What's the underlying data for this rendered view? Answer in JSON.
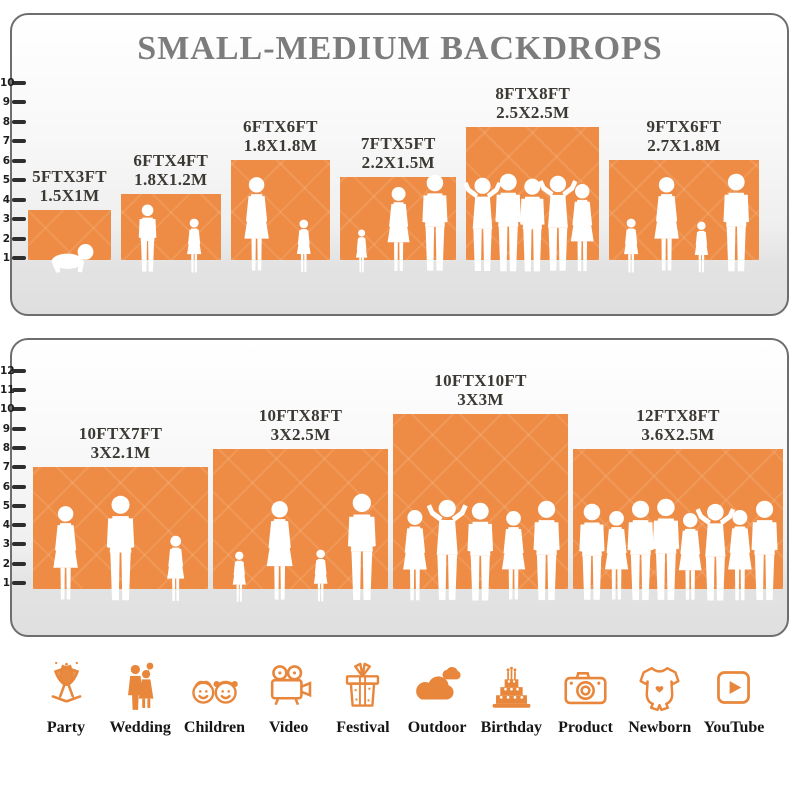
{
  "title": "SMALL-MEDIUM BACKDROPS",
  "colors": {
    "backdrop_orange": "#EE8C45",
    "icon_orange": "#E8873C",
    "title_gray": "#7C7C7C",
    "label_dark": "#3C3934"
  },
  "panels": [
    {
      "name": "top-row-small-medium",
      "ruler_min": 1,
      "ruler_max": 10,
      "backdrops": [
        {
          "size_ft": "5FTX3FT",
          "size_m": "1.5X1M",
          "w_ft": 5,
          "h_ft": 3,
          "people": [
            {
              "type": "baby",
              "h_ft": 1.9
            }
          ]
        },
        {
          "size_ft": "6FTX4FT",
          "size_m": "1.8X1.2M",
          "w_ft": 6,
          "h_ft": 4,
          "people": [
            {
              "type": "boy",
              "h_ft": 4.2
            },
            {
              "type": "girl",
              "h_ft": 3.4
            }
          ]
        },
        {
          "size_ft": "6FTX6FT",
          "size_m": "1.8X1.8M",
          "w_ft": 6,
          "h_ft": 6,
          "people": [
            {
              "type": "woman",
              "h_ft": 5.9
            },
            {
              "type": "girl",
              "h_ft": 3.3
            }
          ]
        },
        {
          "size_ft": "7FTX5FT",
          "size_m": "2.2X1.5M",
          "w_ft": 7,
          "h_ft": 5,
          "people": [
            {
              "type": "girl",
              "h_ft": 2.7
            },
            {
              "type": "woman",
              "h_ft": 5.3
            },
            {
              "type": "man",
              "h_ft": 6.0
            }
          ]
        },
        {
          "size_ft": "8FTX8FT",
          "size_m": "2.5X2.5M",
          "w_ft": 8,
          "h_ft": 8,
          "people": [
            {
              "type": "flex",
              "h_ft": 5.9
            },
            {
              "type": "man",
              "h_ft": 6.1
            },
            {
              "type": "man",
              "h_ft": 5.8
            },
            {
              "type": "flex",
              "h_ft": 6.0
            },
            {
              "type": "woman",
              "h_ft": 5.5
            }
          ]
        },
        {
          "size_ft": "9FTX6FT",
          "size_m": "2.7X1.8M",
          "w_ft": 9,
          "h_ft": 6,
          "people": [
            {
              "type": "girl",
              "h_ft": 3.4
            },
            {
              "type": "woman",
              "h_ft": 5.9
            },
            {
              "type": "girl",
              "h_ft": 3.2
            },
            {
              "type": "man",
              "h_ft": 6.1
            }
          ]
        }
      ]
    },
    {
      "name": "bottom-row-medium-large",
      "ruler_min": 1,
      "ruler_max": 12,
      "backdrops": [
        {
          "size_ft": "10FTX7FT",
          "size_m": "3X2.1M",
          "w_ft": 10,
          "h_ft": 7,
          "people": [
            {
              "type": "woman",
              "h_ft": 5.6
            },
            {
              "type": "man",
              "h_ft": 6.2
            },
            {
              "type": "girl",
              "h_ft": 3.9
            }
          ]
        },
        {
          "size_ft": "10FTX8FT",
          "size_m": "3X2.5M",
          "w_ft": 10,
          "h_ft": 8,
          "people": [
            {
              "type": "girl",
              "h_ft": 3.0
            },
            {
              "type": "woman",
              "h_ft": 5.9
            },
            {
              "type": "girl",
              "h_ft": 3.1
            },
            {
              "type": "man",
              "h_ft": 6.3
            }
          ]
        },
        {
          "size_ft": "10FTX10FT",
          "size_m": "3X3M",
          "w_ft": 10,
          "h_ft": 10,
          "people": [
            {
              "type": "woman",
              "h_ft": 5.4
            },
            {
              "type": "flex",
              "h_ft": 6.0
            },
            {
              "type": "man",
              "h_ft": 5.8
            },
            {
              "type": "woman",
              "h_ft": 5.3
            },
            {
              "type": "man",
              "h_ft": 5.9
            }
          ]
        },
        {
          "size_ft": "12FTX8FT",
          "size_m": "3.6X2.5M",
          "w_ft": 12,
          "h_ft": 8,
          "people": [
            {
              "type": "man",
              "h_ft": 5.7
            },
            {
              "type": "woman",
              "h_ft": 5.3
            },
            {
              "type": "man",
              "h_ft": 5.9
            },
            {
              "type": "man",
              "h_ft": 6.0
            },
            {
              "type": "woman",
              "h_ft": 5.2
            },
            {
              "type": "flex",
              "h_ft": 5.8
            },
            {
              "type": "woman",
              "h_ft": 5.4
            },
            {
              "type": "man",
              "h_ft": 5.9
            }
          ]
        }
      ]
    }
  ],
  "categories": [
    {
      "label": "Party",
      "icon": "party-icon"
    },
    {
      "label": "Wedding",
      "icon": "wedding-icon"
    },
    {
      "label": "Children",
      "icon": "children-icon"
    },
    {
      "label": "Video",
      "icon": "video-icon"
    },
    {
      "label": "Festival",
      "icon": "festival-icon"
    },
    {
      "label": "Outdoor",
      "icon": "outdoor-icon"
    },
    {
      "label": "Birthday",
      "icon": "birthday-icon"
    },
    {
      "label": "Product",
      "icon": "product-icon"
    },
    {
      "label": "Newborn",
      "icon": "newborn-icon"
    },
    {
      "label": "YouTube",
      "icon": "youtube-icon"
    }
  ]
}
